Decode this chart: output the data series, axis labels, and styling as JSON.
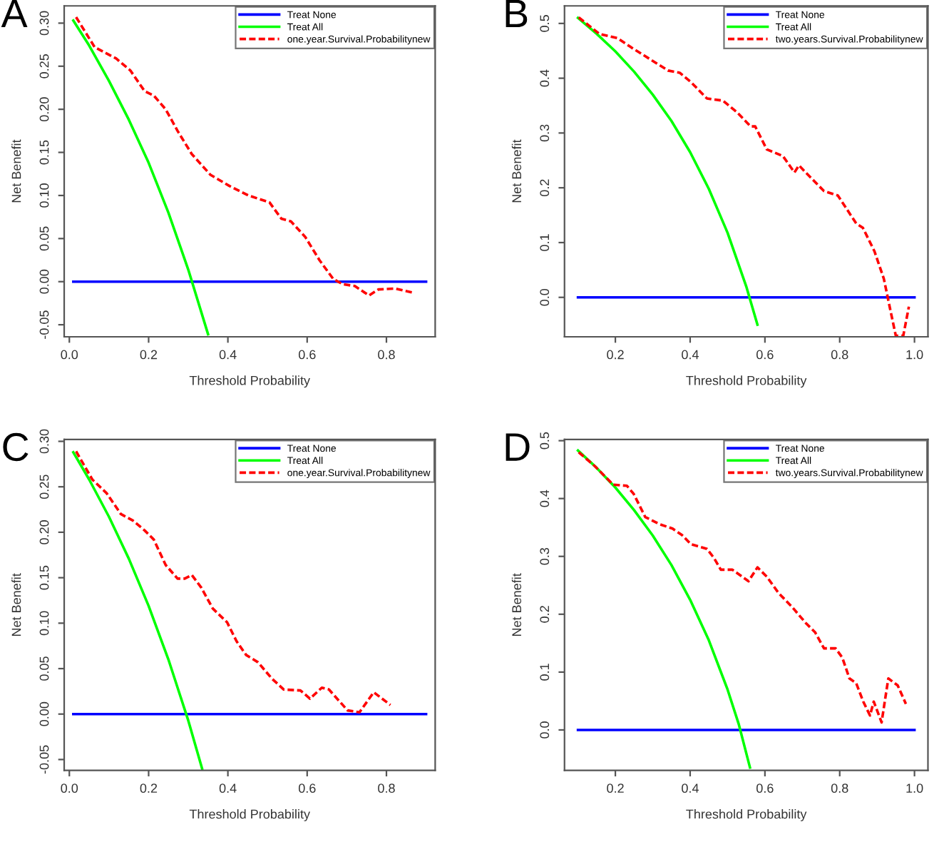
{
  "chart_data": [
    {
      "type": "line",
      "title": "A",
      "xlabel": "Threshold Probability",
      "ylabel": "Net Benefit",
      "legend": "top right",
      "grid": false,
      "xlim": [
        -0.013,
        0.923
      ],
      "ylim": [
        -0.064,
        0.32
      ],
      "xticks": [
        {
          "value": 0,
          "label": "0.0"
        },
        {
          "value": 0.2,
          "label": "0.2"
        },
        {
          "value": 0.4,
          "label": "0.4"
        },
        {
          "value": 0.6,
          "label": "0.6"
        },
        {
          "value": 0.8,
          "label": "0.8"
        }
      ],
      "yticks": [
        {
          "value": -0.05,
          "label": "-0.05"
        },
        {
          "value": 0,
          "label": "0.00"
        },
        {
          "value": 0.05,
          "label": "0.05"
        },
        {
          "value": 0.1,
          "label": "0.10"
        },
        {
          "value": 0.15,
          "label": "0.15"
        },
        {
          "value": 0.2,
          "label": "0.20"
        },
        {
          "value": 0.25,
          "label": "0.25"
        },
        {
          "value": 0.3,
          "label": "0.30"
        }
      ],
      "series": [
        {
          "name": "Treat None",
          "color": "#0000ff",
          "line_style": "solid",
          "x": [
            0.01,
            0.9
          ],
          "values": [
            0,
            0
          ]
        },
        {
          "name": "Treat All",
          "color": "#00ff00",
          "line_style": "solid",
          "x": [
            0.01,
            0.05,
            0.1,
            0.15,
            0.2,
            0.25,
            0.3,
            0.35
          ],
          "values": [
            0.303,
            0.274,
            0.233,
            0.188,
            0.138,
            0.08,
            0.014,
            -0.061
          ]
        },
        {
          "name": "one.year.Survival.Probabilitynew",
          "color": "#ff0000",
          "line_style": "dashed",
          "x": [
            0.017,
            0.064,
            0.118,
            0.154,
            0.19,
            0.213,
            0.243,
            0.273,
            0.309,
            0.356,
            0.404,
            0.452,
            0.505,
            0.535,
            0.559,
            0.595,
            0.631,
            0.666,
            0.69,
            0.72,
            0.756,
            0.78,
            0.821,
            0.869
          ],
          "values": [
            0.307,
            0.272,
            0.259,
            0.245,
            0.221,
            0.216,
            0.2,
            0.175,
            0.148,
            0.124,
            0.111,
            0.1,
            0.092,
            0.073,
            0.07,
            0.052,
            0.025,
            0.003,
            -0.003,
            -0.005,
            -0.016,
            -0.009,
            -0.008,
            -0.013
          ]
        }
      ]
    },
    {
      "type": "line",
      "title": "B",
      "xlabel": "Threshold Probability",
      "ylabel": "Net Benefit",
      "legend": "top right",
      "grid": false,
      "xlim": [
        0.064,
        1.036
      ],
      "ylim": [
        -0.072,
        0.532
      ],
      "xticks": [
        {
          "value": 0.2,
          "label": "0.2"
        },
        {
          "value": 0.4,
          "label": "0.4"
        },
        {
          "value": 0.6,
          "label": "0.6"
        },
        {
          "value": 0.8,
          "label": "0.8"
        },
        {
          "value": 1.0,
          "label": "1.0"
        }
      ],
      "yticks": [
        {
          "value": 0,
          "label": "0.0"
        },
        {
          "value": 0.1,
          "label": "0.1"
        },
        {
          "value": 0.2,
          "label": "0.2"
        },
        {
          "value": 0.3,
          "label": "0.3"
        },
        {
          "value": 0.4,
          "label": "0.4"
        },
        {
          "value": 0.5,
          "label": "0.5"
        }
      ],
      "series": [
        {
          "name": "Treat None",
          "color": "#0000ff",
          "line_style": "solid",
          "x": [
            0.1,
            1.0
          ],
          "values": [
            0,
            0
          ]
        },
        {
          "name": "Treat All",
          "color": "#00ff00",
          "line_style": "solid",
          "x": [
            0.1,
            0.15,
            0.2,
            0.25,
            0.3,
            0.35,
            0.4,
            0.45,
            0.5,
            0.55,
            0.58
          ],
          "values": [
            0.51,
            0.481,
            0.449,
            0.412,
            0.37,
            0.322,
            0.265,
            0.198,
            0.118,
            0.02,
            -0.05
          ]
        },
        {
          "name": "two.years.Survival.Probabilitynew",
          "color": "#ff0000",
          "line_style": "dashed",
          "x": [
            0.102,
            0.157,
            0.206,
            0.243,
            0.292,
            0.341,
            0.372,
            0.402,
            0.445,
            0.488,
            0.525,
            0.562,
            0.574,
            0.605,
            0.648,
            0.679,
            0.691,
            0.709,
            0.758,
            0.795,
            0.844,
            0.862,
            0.893,
            0.918,
            0.936,
            0.95,
            0.97,
            0.985
          ],
          "values": [
            0.511,
            0.481,
            0.473,
            0.456,
            0.435,
            0.414,
            0.41,
            0.393,
            0.363,
            0.359,
            0.338,
            0.312,
            0.312,
            0.27,
            0.258,
            0.228,
            0.241,
            0.228,
            0.194,
            0.186,
            0.135,
            0.127,
            0.084,
            0.034,
            -0.025,
            -0.07,
            -0.07,
            -0.017
          ]
        }
      ]
    },
    {
      "type": "line",
      "title": "C",
      "xlabel": "Threshold Probability",
      "ylabel": "Net Benefit",
      "legend": "top right",
      "grid": false,
      "xlim": [
        -0.013,
        0.923
      ],
      "ylim": [
        -0.062,
        0.302
      ],
      "xticks": [
        {
          "value": 0,
          "label": "0.0"
        },
        {
          "value": 0.2,
          "label": "0.2"
        },
        {
          "value": 0.4,
          "label": "0.4"
        },
        {
          "value": 0.6,
          "label": "0.6"
        },
        {
          "value": 0.8,
          "label": "0.8"
        }
      ],
      "yticks": [
        {
          "value": -0.05,
          "label": "-0.05"
        },
        {
          "value": 0,
          "label": "0.00"
        },
        {
          "value": 0.05,
          "label": "0.05"
        },
        {
          "value": 0.1,
          "label": "0.10"
        },
        {
          "value": 0.15,
          "label": "0.15"
        },
        {
          "value": 0.2,
          "label": "0.20"
        },
        {
          "value": 0.25,
          "label": "0.25"
        },
        {
          "value": 0.3,
          "label": "0.30"
        }
      ],
      "series": [
        {
          "name": "Treat None",
          "color": "#0000ff",
          "line_style": "solid",
          "x": [
            0.01,
            0.9
          ],
          "values": [
            0,
            0
          ]
        },
        {
          "name": "Treat All",
          "color": "#00ff00",
          "line_style": "solid",
          "x": [
            0.01,
            0.05,
            0.1,
            0.15,
            0.2,
            0.25,
            0.3,
            0.335
          ],
          "values": [
            0.288,
            0.258,
            0.217,
            0.171,
            0.119,
            0.06,
            -0.007,
            -0.06
          ]
        },
        {
          "name": "one.year.Survival.Probabilitynew",
          "color": "#ff0000",
          "line_style": "dashed",
          "x": [
            0.017,
            0.058,
            0.094,
            0.13,
            0.16,
            0.19,
            0.213,
            0.243,
            0.273,
            0.291,
            0.309,
            0.333,
            0.362,
            0.398,
            0.422,
            0.446,
            0.476,
            0.511,
            0.541,
            0.583,
            0.607,
            0.637,
            0.655,
            0.702,
            0.732,
            0.768,
            0.81
          ],
          "values": [
            0.289,
            0.258,
            0.243,
            0.22,
            0.213,
            0.202,
            0.192,
            0.164,
            0.149,
            0.149,
            0.153,
            0.139,
            0.116,
            0.101,
            0.08,
            0.065,
            0.057,
            0.039,
            0.027,
            0.026,
            0.017,
            0.029,
            0.027,
            0.004,
            0.002,
            0.024,
            0.01
          ]
        }
      ]
    },
    {
      "type": "line",
      "title": "D",
      "xlabel": "Threshold Probability",
      "ylabel": "Net Benefit",
      "legend": "top right",
      "grid": false,
      "xlim": [
        0.064,
        1.036
      ],
      "ylim": [
        -0.07,
        0.502
      ],
      "xticks": [
        {
          "value": 0.2,
          "label": "0.2"
        },
        {
          "value": 0.4,
          "label": "0.4"
        },
        {
          "value": 0.6,
          "label": "0.6"
        },
        {
          "value": 0.8,
          "label": "0.8"
        },
        {
          "value": 1.0,
          "label": "1.0"
        }
      ],
      "yticks": [
        {
          "value": 0,
          "label": "0.0"
        },
        {
          "value": 0.1,
          "label": "0.1"
        },
        {
          "value": 0.2,
          "label": "0.2"
        },
        {
          "value": 0.3,
          "label": "0.3"
        },
        {
          "value": 0.4,
          "label": "0.4"
        },
        {
          "value": 0.5,
          "label": "0.5"
        }
      ],
      "series": [
        {
          "name": "Treat None",
          "color": "#0000ff",
          "line_style": "solid",
          "x": [
            0.1,
            1.0
          ],
          "values": [
            0,
            0
          ]
        },
        {
          "name": "Treat All",
          "color": "#00ff00",
          "line_style": "solid",
          "x": [
            0.1,
            0.15,
            0.2,
            0.25,
            0.3,
            0.35,
            0.4,
            0.45,
            0.5,
            0.53,
            0.56
          ],
          "values": [
            0.483,
            0.453,
            0.419,
            0.38,
            0.336,
            0.285,
            0.225,
            0.155,
            0.07,
            0.01,
            -0.065
          ]
        },
        {
          "name": "two.years.Survival.Probabilitynew",
          "color": "#ff0000",
          "line_style": "dashed",
          "x": [
            0.102,
            0.145,
            0.194,
            0.231,
            0.249,
            0.28,
            0.317,
            0.353,
            0.378,
            0.402,
            0.445,
            0.464,
            0.482,
            0.513,
            0.556,
            0.58,
            0.605,
            0.636,
            0.672,
            0.709,
            0.734,
            0.758,
            0.789,
            0.807,
            0.826,
            0.844,
            0.863,
            0.881,
            0.891,
            0.912,
            0.93,
            0.955,
            0.977
          ],
          "values": [
            0.48,
            0.456,
            0.424,
            0.422,
            0.408,
            0.368,
            0.356,
            0.348,
            0.337,
            0.321,
            0.313,
            0.297,
            0.277,
            0.277,
            0.257,
            0.281,
            0.265,
            0.237,
            0.213,
            0.185,
            0.169,
            0.141,
            0.141,
            0.125,
            0.089,
            0.081,
            0.049,
            0.025,
            0.049,
            0.013,
            0.089,
            0.077,
            0.045
          ]
        }
      ]
    }
  ]
}
